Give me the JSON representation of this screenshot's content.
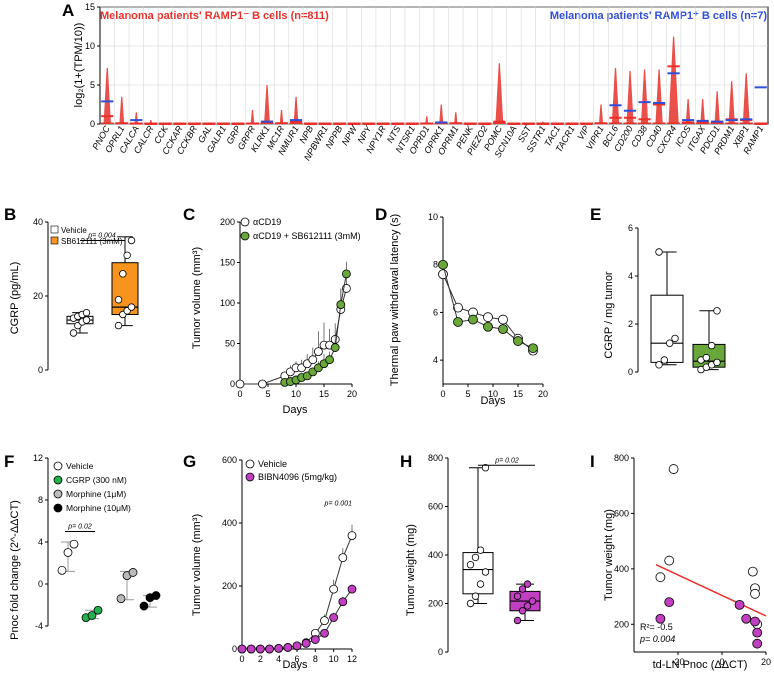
{
  "A": {
    "label": "A",
    "ylabel": "log₂(1+(TPM/10))",
    "ylim": [
      0,
      15
    ],
    "yticks": [
      "0",
      "5",
      "10",
      "15"
    ],
    "title_left": "Melanoma patients' RAMP1⁻ B cells (n=811)",
    "title_right": "Melanoma patients' RAMP1⁺ B cells (n=7)",
    "colors": {
      "neg": "#e8302a",
      "pos": "#2f4fd8"
    },
    "genes": [
      "PNOC",
      "OPRL1",
      "CALCA",
      "CALCR",
      "CCK",
      "CCKAR",
      "CCKBR",
      "GAL",
      "GALR1",
      "GRP",
      "GRPR",
      "KLRK1",
      "MC1R",
      "NMUR1",
      "NPB",
      "NPBWR1",
      "NPPB",
      "NPW",
      "NPY",
      "NPY1R",
      "NTS",
      "NTSR1",
      "OPRD1",
      "OPRK1",
      "OPRM1",
      "PENK",
      "PIEZO2",
      "POMC",
      "SCN10A",
      "SST",
      "SSTR1",
      "TAC1",
      "TACR1",
      "VIP",
      "VIPR1",
      "BCL6",
      "CD200",
      "CD38",
      "CD40",
      "CXCR4",
      "ICOS",
      "ITGAX",
      "PDCD1",
      "PRDM1",
      "XBP1",
      "RAMP1"
    ],
    "neg_mean": [
      1.0,
      0.1,
      0.05,
      0,
      0,
      0,
      0,
      0,
      0,
      0,
      0.05,
      0.3,
      0.1,
      0.3,
      0,
      0,
      0,
      0,
      0,
      0,
      0,
      0,
      0.05,
      0.1,
      0.1,
      0,
      0,
      0.3,
      0,
      0,
      0,
      0,
      0,
      0,
      0.1,
      0.8,
      0.8,
      0.6,
      2.5,
      7.4,
      0.2,
      0.2,
      0.3,
      0.6,
      0.5,
      0
    ],
    "pos_mean": [
      2.9,
      0,
      0.5,
      0,
      0,
      0,
      0,
      0,
      0,
      0,
      0,
      0.3,
      0,
      0.5,
      0,
      0,
      0,
      0,
      0,
      0,
      0,
      0,
      0,
      0.2,
      0,
      0,
      0,
      0,
      0,
      0,
      0,
      0,
      0,
      0,
      0,
      2.4,
      1.7,
      2.8,
      2.7,
      6.5,
      0.5,
      0.4,
      0.3,
      0.5,
      0.6,
      4.7
    ],
    "neg_max": [
      7.2,
      3.5,
      1.5,
      0.5,
      0.2,
      0,
      0,
      0,
      0,
      0,
      1.8,
      5.0,
      1.8,
      3.5,
      0,
      0,
      0,
      0,
      0,
      0,
      0,
      0,
      1.0,
      2.5,
      1.5,
      0,
      0,
      7.8,
      0,
      0,
      0.3,
      0,
      0,
      0,
      2.5,
      7.2,
      6.8,
      7.0,
      7.0,
      11.2,
      3.2,
      3.2,
      4.2,
      5.5,
      6.5,
      0
    ]
  },
  "B": {
    "label": "B",
    "ylabel": "CGRP (pg/mL)",
    "ylim": [
      0,
      40
    ],
    "yticks": [
      "0",
      "20",
      "40"
    ],
    "legend": [
      {
        "name": "Vehicle",
        "color": "#ffffff"
      },
      {
        "name": "SB612111 (3mM)",
        "color": "#f7941d"
      }
    ],
    "pvalue": "p= 0.004",
    "groups": [
      {
        "name": "Vehicle",
        "color": "#ffffff",
        "min": 10,
        "q1": 12.5,
        "median": 13.5,
        "q3": 14.5,
        "max": 15.5,
        "points": [
          10,
          12,
          13,
          13.5,
          14,
          14.5,
          15,
          15.5
        ]
      },
      {
        "name": "SB612111 (3mM)",
        "color": "#f7941d",
        "min": 12,
        "q1": 15,
        "median": 17,
        "q3": 29,
        "max": 36,
        "points": [
          12,
          15,
          16,
          17,
          19,
          26,
          31,
          35
        ]
      }
    ]
  },
  "C": {
    "label": "C",
    "ylabel": "Tumor volume (mm³)",
    "xlabel": "Days",
    "ylim": [
      0,
      200
    ],
    "yticks": [
      "0",
      "50",
      "100",
      "150",
      "200"
    ],
    "xlim": [
      0,
      20
    ],
    "xticks": [
      "0",
      "5",
      "10",
      "15",
      "20"
    ],
    "legend": [
      "αCD19",
      "αCD19 + SB612111 (3mM)"
    ],
    "series": [
      {
        "name": "αCD19",
        "color": "#ffffff",
        "x": [
          0,
          4,
          8,
          9,
          10,
          11,
          12,
          13,
          14,
          15,
          16,
          17,
          18,
          19
        ],
        "y": [
          0,
          0,
          10,
          15,
          20,
          20,
          25,
          30,
          40,
          48,
          48,
          55,
          92,
          118
        ],
        "err": [
          0,
          0,
          5,
          8,
          8,
          10,
          12,
          15,
          25,
          28,
          20,
          20,
          25,
          15
        ]
      },
      {
        "name": "αCD19 + SB612111 (3mM)",
        "color": "#6aa73a",
        "x": [
          8,
          9,
          10,
          11,
          12,
          13,
          14,
          15,
          16,
          17,
          18,
          19
        ],
        "y": [
          2,
          3,
          5,
          8,
          10,
          15,
          20,
          25,
          30,
          45,
          98,
          136
        ],
        "err": [
          1,
          2,
          2,
          3,
          4,
          5,
          8,
          12,
          10,
          15,
          20,
          15
        ]
      }
    ]
  },
  "D": {
    "label": "D",
    "ylabel": "Thermal paw withdrawal latency (s)",
    "xlabel": "Days",
    "ylim": [
      3,
      10
    ],
    "yticks": [
      "4",
      "6",
      "8",
      "10"
    ],
    "xlim": [
      0,
      20
    ],
    "xticks": [
      "0",
      "5",
      "10",
      "15",
      "20"
    ],
    "series": [
      {
        "name": "αCD19",
        "color": "#ffffff",
        "x": [
          0,
          3,
          6,
          9,
          12,
          15,
          18
        ],
        "y": [
          7.6,
          6.2,
          6.0,
          5.8,
          5.7,
          4.9,
          4.4
        ]
      },
      {
        "name": "αCD19 + SB612111 (3mM)",
        "color": "#6aa73a",
        "x": [
          0,
          3,
          6,
          9,
          12,
          15,
          18
        ],
        "y": [
          8.0,
          5.6,
          5.7,
          5.4,
          5.3,
          4.8,
          4.5
        ]
      }
    ]
  },
  "E": {
    "label": "E",
    "ylabel": "CGRP / mg tumor",
    "ylim": [
      0,
      6
    ],
    "yticks": [
      "0",
      "2",
      "4",
      "6"
    ],
    "groups": [
      {
        "name": "Vehicle",
        "color": "#ffffff",
        "min": 0.3,
        "q1": 0.4,
        "median": 1.2,
        "q3": 3.2,
        "max": 5.0,
        "points": [
          0.3,
          0.5,
          1.2,
          1.4,
          5.0
        ]
      },
      {
        "name": "SB612111 (3mM)",
        "color": "#6aa73a",
        "min": 0.1,
        "q1": 0.2,
        "median": 0.45,
        "q3": 1.15,
        "max": 2.55,
        "points": [
          0.1,
          0.2,
          0.3,
          0.4,
          0.5,
          0.6,
          1.1,
          2.55
        ]
      }
    ]
  },
  "F": {
    "label": "F",
    "ylabel": "Pnoc fold change (2^-ΔΔCT)",
    "ylim": [
      -4,
      12
    ],
    "yticks": [
      "-4",
      "0",
      "4",
      "8",
      "12"
    ],
    "legend": [
      {
        "name": "Vehicle",
        "color": "#ffffff"
      },
      {
        "name": "CGRP (300 nM)",
        "color": "#22b14c"
      },
      {
        "name": "Morphine (1μM)",
        "color": "#bbbbbb"
      },
      {
        "name": "Morphine (10μM)",
        "color": "#000000"
      }
    ],
    "pvalue": "p= 0.02",
    "groups": [
      {
        "name": "Vehicle",
        "color": "#ffffff",
        "median": 3.0,
        "low": 1.2,
        "high": 4.0,
        "points": [
          1.3,
          3.0,
          3.8
        ]
      },
      {
        "name": "CGRP (300 nM)",
        "color": "#22b14c",
        "median": -2.8,
        "low": -3.3,
        "high": -2.5,
        "points": [
          -3.2,
          -3.0,
          -2.5
        ]
      },
      {
        "name": "Morphine (1μM)",
        "color": "#bbbbbb",
        "median": 0.8,
        "low": -1.5,
        "high": 1.2,
        "points": [
          -1.4,
          0.8,
          1.1
        ]
      },
      {
        "name": "Morphine (10μM)",
        "color": "#000000",
        "median": -1.2,
        "low": -2.2,
        "high": -1.1,
        "points": [
          -2.1,
          -1.3,
          -1.1
        ]
      }
    ]
  },
  "G": {
    "label": "G",
    "ylabel": "Tumor volume (mm³)",
    "xlabel": "Days",
    "ylim": [
      0,
      600
    ],
    "yticks": [
      "0",
      "200",
      "400",
      "600"
    ],
    "xlim": [
      0,
      12
    ],
    "xticks": [
      "0",
      "2",
      "4",
      "6",
      "8",
      "10",
      "12"
    ],
    "legend": [
      "Vehicle",
      "BIBN4096 (5mg/kg)"
    ],
    "pvalue": "p= 0.001",
    "series": [
      {
        "name": "Vehicle",
        "color": "#ffffff",
        "x": [
          0,
          1,
          2,
          3,
          4,
          5,
          6,
          7,
          8,
          9,
          10,
          11,
          12
        ],
        "y": [
          0,
          0,
          0,
          0,
          2,
          5,
          10,
          20,
          50,
          90,
          190,
          290,
          360
        ],
        "err": [
          0,
          0,
          0,
          0,
          2,
          3,
          5,
          8,
          12,
          20,
          30,
          30,
          35
        ]
      },
      {
        "name": "BIBN4096 (5mg/kg)",
        "color": "#c13fc1",
        "x": [
          0,
          1,
          2,
          3,
          4,
          5,
          6,
          7,
          8,
          9,
          10,
          11,
          12
        ],
        "y": [
          0,
          0,
          0,
          0,
          2,
          5,
          10,
          18,
          30,
          50,
          100,
          150,
          190
        ],
        "err": [
          0,
          0,
          0,
          0,
          1,
          2,
          3,
          5,
          8,
          10,
          15,
          15,
          15
        ]
      }
    ]
  },
  "H": {
    "label": "H",
    "ylabel": "Tumor weight (mg)",
    "ylim": [
      0,
      800
    ],
    "yticks": [
      "0",
      "200",
      "400",
      "600",
      "800"
    ],
    "pvalue": "p= 0.02",
    "groups": [
      {
        "name": "Vehicle",
        "color": "#ffffff",
        "min": 200,
        "q1": 240,
        "median": 340,
        "q3": 410,
        "max": 760,
        "points": [
          200,
          230,
          280,
          330,
          360,
          390,
          420,
          760
        ]
      },
      {
        "name": "BIBN4096 (5mg/kg)",
        "color": "#c13fc1",
        "min": 130,
        "q1": 170,
        "median": 210,
        "q3": 250,
        "max": 280,
        "points": [
          130,
          170,
          190,
          210,
          230,
          260,
          280
        ]
      }
    ]
  },
  "I": {
    "label": "I",
    "ylabel": "Tumor weight (mg)",
    "xlabel": "td-LN Pnoc (ΔΔCT)",
    "ylim": [
      100,
      800
    ],
    "yticks": [
      "200",
      "400",
      "600",
      "800"
    ],
    "xlim": [
      -40,
      20
    ],
    "xticks": [
      "-20",
      "0",
      "20"
    ],
    "annotation": [
      "R²= -0.5",
      "p= 0.004"
    ],
    "fit": {
      "color": "#e8302a",
      "x": [
        -30,
        20
      ],
      "y": [
        415,
        230
      ]
    },
    "points": [
      {
        "x": -28,
        "y": 370,
        "group": "Vehicle"
      },
      {
        "x": -24,
        "y": 430,
        "group": "Vehicle"
      },
      {
        "x": -22,
        "y": 760,
        "group": "Vehicle"
      },
      {
        "x": 14,
        "y": 390,
        "group": "Vehicle"
      },
      {
        "x": 15,
        "y": 330,
        "group": "Vehicle"
      },
      {
        "x": 15,
        "y": 310,
        "group": "Vehicle"
      },
      {
        "x": 16,
        "y": 200,
        "group": "Vehicle"
      },
      {
        "x": -28,
        "y": 220,
        "group": "BIBN4096"
      },
      {
        "x": -24,
        "y": 280,
        "group": "BIBN4096"
      },
      {
        "x": 8,
        "y": 270,
        "group": "BIBN4096"
      },
      {
        "x": 11,
        "y": 220,
        "group": "BIBN4096"
      },
      {
        "x": 15,
        "y": 210,
        "group": "BIBN4096"
      },
      {
        "x": 16,
        "y": 170,
        "group": "BIBN4096"
      },
      {
        "x": 16,
        "y": 130,
        "group": "BIBN4096"
      }
    ],
    "colors": {
      "Vehicle": "#ffffff",
      "BIBN4096": "#c13fc1"
    }
  },
  "chart_data": [
    {
      "panel": "A",
      "type": "scatter",
      "title": "Melanoma patients' RAMP1⁻ vs RAMP1⁺ B cells",
      "ylabel": "log₂(1+(TPM/10))",
      "ylim": [
        0,
        15
      ]
    },
    {
      "panel": "B",
      "type": "box",
      "ylabel": "CGRP (pg/mL)",
      "ylim": [
        0,
        40
      ]
    },
    {
      "panel": "C",
      "type": "line",
      "ylabel": "Tumor volume (mm³)",
      "xlabel": "Days"
    },
    {
      "panel": "D",
      "type": "line",
      "ylabel": "Thermal paw withdrawal latency (s)",
      "xlabel": "Days"
    },
    {
      "panel": "E",
      "type": "box",
      "ylabel": "CGRP / mg tumor"
    },
    {
      "panel": "F",
      "type": "scatter",
      "ylabel": "Pnoc fold change"
    },
    {
      "panel": "G",
      "type": "line",
      "ylabel": "Tumor volume (mm³)",
      "xlabel": "Days"
    },
    {
      "panel": "H",
      "type": "box",
      "ylabel": "Tumor weight (mg)"
    },
    {
      "panel": "I",
      "type": "scatter",
      "ylabel": "Tumor weight (mg)",
      "xlabel": "td-LN Pnoc (ΔΔCT)"
    }
  ]
}
